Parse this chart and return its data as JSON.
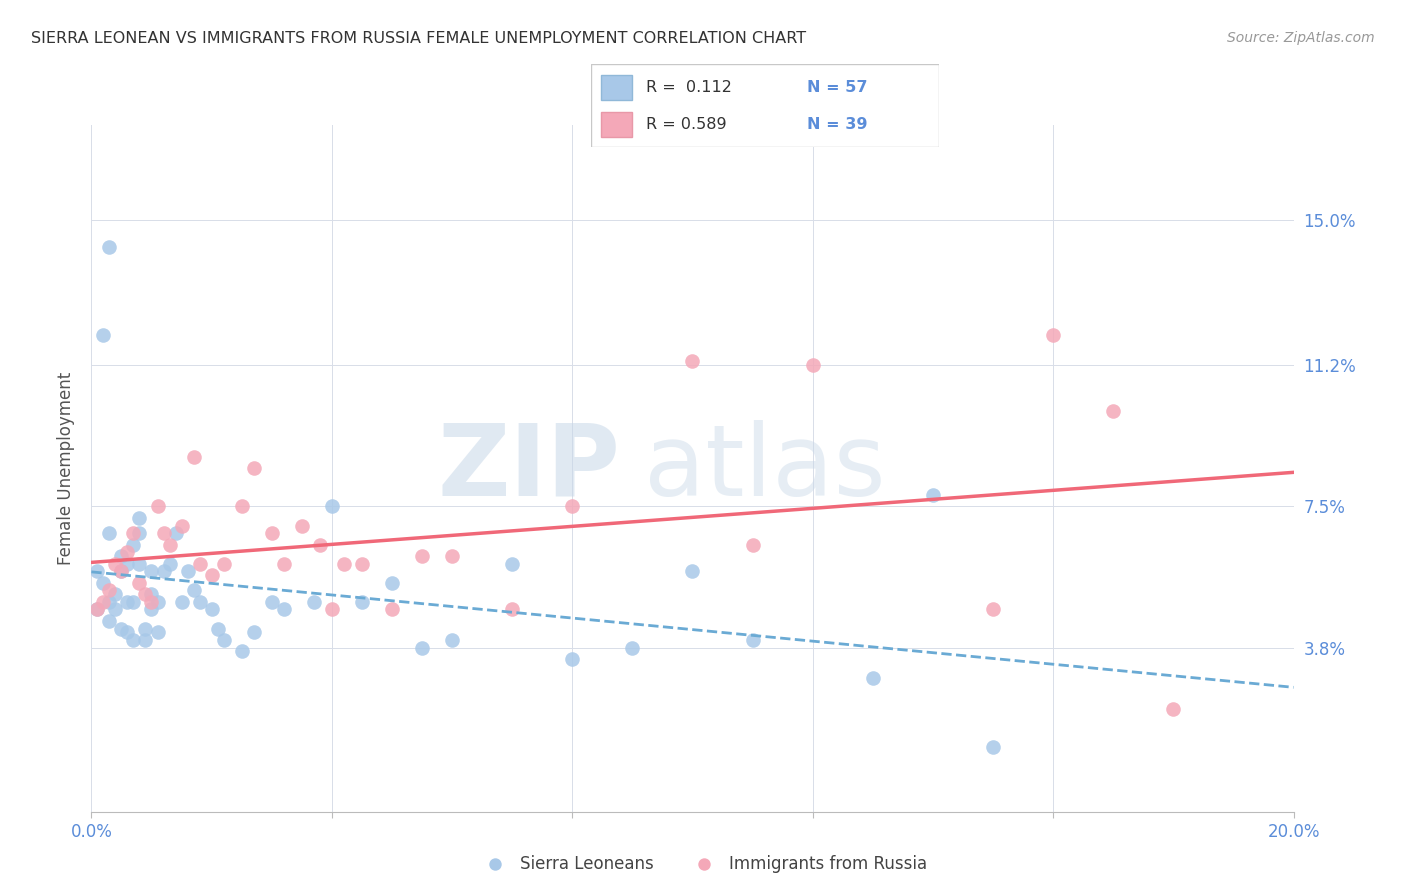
{
  "title": "SIERRA LEONEAN VS IMMIGRANTS FROM RUSSIA FEMALE UNEMPLOYMENT CORRELATION CHART",
  "source": "Source: ZipAtlas.com",
  "ylabel": "Female Unemployment",
  "yticks": [
    0.038,
    0.075,
    0.112,
    0.15
  ],
  "ytick_labels": [
    "3.8%",
    "7.5%",
    "11.2%",
    "15.0%"
  ],
  "xmin": 0.0,
  "xmax": 0.2,
  "ymin": -0.005,
  "ymax": 0.175,
  "color_blue_scatter": "#a8c8e8",
  "color_pink_scatter": "#f4a8b8",
  "color_blue_line": "#6aaad4",
  "color_pink_line": "#f06878",
  "color_tick": "#5b8dd9",
  "color_title": "#333333",
  "color_source": "#999999",
  "color_grid": "#d8dde8",
  "watermark_color": "#c8d8e8",
  "legend_label1": "Sierra Leoneans",
  "legend_label2": "Immigrants from Russia",
  "sierra_x": [
    0.001,
    0.001,
    0.002,
    0.002,
    0.003,
    0.003,
    0.003,
    0.004,
    0.004,
    0.005,
    0.005,
    0.005,
    0.006,
    0.006,
    0.006,
    0.007,
    0.007,
    0.007,
    0.008,
    0.008,
    0.008,
    0.009,
    0.009,
    0.01,
    0.01,
    0.01,
    0.011,
    0.011,
    0.012,
    0.013,
    0.014,
    0.015,
    0.016,
    0.017,
    0.018,
    0.02,
    0.021,
    0.022,
    0.025,
    0.027,
    0.03,
    0.032,
    0.037,
    0.04,
    0.045,
    0.05,
    0.055,
    0.06,
    0.07,
    0.08,
    0.09,
    0.1,
    0.11,
    0.13,
    0.003,
    0.14,
    0.15
  ],
  "sierra_y": [
    0.058,
    0.048,
    0.055,
    0.12,
    0.05,
    0.045,
    0.068,
    0.048,
    0.052,
    0.043,
    0.058,
    0.062,
    0.042,
    0.05,
    0.06,
    0.04,
    0.05,
    0.065,
    0.06,
    0.068,
    0.072,
    0.043,
    0.04,
    0.048,
    0.052,
    0.058,
    0.042,
    0.05,
    0.058,
    0.06,
    0.068,
    0.05,
    0.058,
    0.053,
    0.05,
    0.048,
    0.043,
    0.04,
    0.037,
    0.042,
    0.05,
    0.048,
    0.05,
    0.075,
    0.05,
    0.055,
    0.038,
    0.04,
    0.06,
    0.035,
    0.038,
    0.058,
    0.04,
    0.03,
    0.143,
    0.078,
    0.012
  ],
  "russia_x": [
    0.001,
    0.002,
    0.003,
    0.004,
    0.005,
    0.006,
    0.007,
    0.008,
    0.009,
    0.01,
    0.011,
    0.012,
    0.013,
    0.015,
    0.017,
    0.018,
    0.02,
    0.022,
    0.025,
    0.027,
    0.03,
    0.032,
    0.035,
    0.038,
    0.04,
    0.042,
    0.045,
    0.05,
    0.055,
    0.06,
    0.07,
    0.08,
    0.1,
    0.11,
    0.12,
    0.15,
    0.16,
    0.17,
    0.18
  ],
  "russia_y": [
    0.048,
    0.05,
    0.053,
    0.06,
    0.058,
    0.063,
    0.068,
    0.055,
    0.052,
    0.05,
    0.075,
    0.068,
    0.065,
    0.07,
    0.088,
    0.06,
    0.057,
    0.06,
    0.075,
    0.085,
    0.068,
    0.06,
    0.07,
    0.065,
    0.048,
    0.06,
    0.06,
    0.048,
    0.062,
    0.062,
    0.048,
    0.075,
    0.113,
    0.065,
    0.112,
    0.048,
    0.12,
    0.1,
    0.022
  ]
}
